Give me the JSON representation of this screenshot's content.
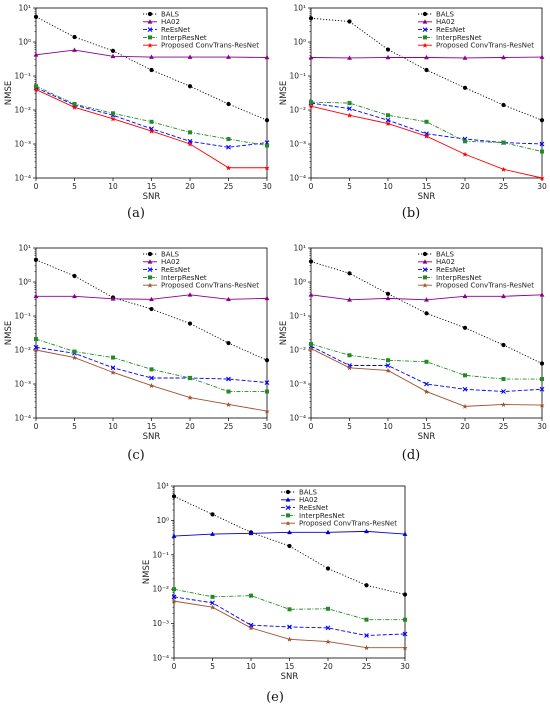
{
  "figure": {
    "legend_labels": [
      "BALS",
      "HA02",
      "ReEsNet",
      "InterpResNet",
      "Proposed ConvTrans-ResNet"
    ]
  },
  "chart_data": [
    {
      "caption": "(a)",
      "type": "line",
      "xlabel": "SNR",
      "ylabel": "NMSE",
      "x": [
        0,
        5,
        10,
        15,
        20,
        25,
        30
      ],
      "xlim": [
        0,
        30
      ],
      "ylim": [
        0.0001,
        10
      ],
      "yscale": "log",
      "xticks": [
        "0",
        "5",
        "10",
        "15",
        "20",
        "25",
        "30"
      ],
      "yticks": [
        "10⁻⁴",
        "10⁻³",
        "10⁻²",
        "10⁻¹",
        "10⁰",
        "10¹"
      ],
      "grid": false,
      "legend_position": "top-right",
      "series": [
        {
          "name": "BALS",
          "color": "#000000",
          "dash": "dotted",
          "marker": "circle",
          "values": [
            5.5,
            1.4,
            0.55,
            0.15,
            0.05,
            0.015,
            0.005
          ]
        },
        {
          "name": "HA02",
          "color": "#8b008b",
          "dash": "solid",
          "marker": "triangle",
          "values": [
            0.42,
            0.58,
            0.38,
            0.36,
            0.36,
            0.36,
            0.35
          ]
        },
        {
          "name": "ReEsNet",
          "color": "#0000ff",
          "dash": "dashed",
          "marker": "x",
          "values": [
            0.045,
            0.014,
            0.007,
            0.0028,
            0.0012,
            0.0008,
            0.0011
          ]
        },
        {
          "name": "InterpResNet",
          "color": "#228b22",
          "dash": "dashdot",
          "marker": "square",
          "values": [
            0.05,
            0.015,
            0.008,
            0.0045,
            0.0022,
            0.0014,
            0.0009
          ]
        },
        {
          "name": "Proposed ConvTrans-ResNet",
          "color": "#ff0000",
          "dash": "solid",
          "marker": "star",
          "values": [
            0.04,
            0.012,
            0.0055,
            0.0024,
            0.001,
            0.0002,
            0.0002
          ]
        }
      ]
    },
    {
      "caption": "(b)",
      "type": "line",
      "xlabel": "SNR",
      "ylabel": "NMSE",
      "x": [
        0,
        5,
        10,
        15,
        20,
        25,
        30
      ],
      "xlim": [
        0,
        30
      ],
      "ylim": [
        0.0001,
        10
      ],
      "yscale": "log",
      "xticks": [
        "0",
        "5",
        "10",
        "15",
        "20",
        "25",
        "30"
      ],
      "yticks": [
        "10⁻⁴",
        "10⁻³",
        "10⁻²",
        "10⁻¹",
        "10⁰",
        "10¹"
      ],
      "grid": false,
      "legend_position": "top-right",
      "series": [
        {
          "name": "BALS",
          "color": "#000000",
          "dash": "dotted",
          "marker": "circle",
          "values": [
            5.0,
            4.0,
            0.6,
            0.15,
            0.045,
            0.014,
            0.005
          ]
        },
        {
          "name": "HA02",
          "color": "#8b008b",
          "dash": "solid",
          "marker": "triangle",
          "values": [
            0.35,
            0.34,
            0.35,
            0.35,
            0.34,
            0.35,
            0.36
          ]
        },
        {
          "name": "ReEsNet",
          "color": "#0000ff",
          "dash": "dashed",
          "marker": "x",
          "values": [
            0.016,
            0.011,
            0.005,
            0.002,
            0.0014,
            0.0011,
            0.001
          ]
        },
        {
          "name": "InterpResNet",
          "color": "#228b22",
          "dash": "dashdot",
          "marker": "square",
          "values": [
            0.017,
            0.016,
            0.007,
            0.0045,
            0.0012,
            0.0011,
            0.0006
          ]
        },
        {
          "name": "Proposed ConvTrans-ResNet",
          "color": "#ff0000",
          "dash": "solid",
          "marker": "star",
          "values": [
            0.013,
            0.007,
            0.004,
            0.0017,
            0.0005,
            0.00018,
            0.0001
          ]
        }
      ]
    },
    {
      "caption": "(c)",
      "type": "line",
      "xlabel": "SNR",
      "ylabel": "NMSE",
      "x": [
        0,
        5,
        10,
        15,
        20,
        25,
        30
      ],
      "xlim": [
        0,
        30
      ],
      "ylim": [
        0.0001,
        10
      ],
      "yscale": "log",
      "xticks": [
        "0",
        "5",
        "10",
        "15",
        "20",
        "25",
        "30"
      ],
      "yticks": [
        "10⁻⁴",
        "10⁻³",
        "10⁻²",
        "10⁻¹",
        "10⁰",
        "10¹"
      ],
      "grid": false,
      "legend_position": "top-right",
      "series": [
        {
          "name": "BALS",
          "color": "#000000",
          "dash": "dotted",
          "marker": "circle",
          "values": [
            4.5,
            1.5,
            0.35,
            0.16,
            0.06,
            0.016,
            0.005
          ]
        },
        {
          "name": "HA02",
          "color": "#8b008b",
          "dash": "solid",
          "marker": "triangle",
          "values": [
            0.38,
            0.38,
            0.32,
            0.31,
            0.42,
            0.31,
            0.33
          ]
        },
        {
          "name": "ReEsNet",
          "color": "#0000ff",
          "dash": "dashed",
          "marker": "x",
          "values": [
            0.012,
            0.008,
            0.003,
            0.0015,
            0.0015,
            0.0014,
            0.0011
          ]
        },
        {
          "name": "InterpResNet",
          "color": "#228b22",
          "dash": "dashdot",
          "marker": "square",
          "values": [
            0.021,
            0.009,
            0.006,
            0.0027,
            0.0015,
            0.0006,
            0.0006
          ]
        },
        {
          "name": "Proposed ConvTrans-ResNet",
          "color": "#a0522d",
          "dash": "solid",
          "marker": "star",
          "values": [
            0.01,
            0.006,
            0.0022,
            0.0009,
            0.0004,
            0.00025,
            0.00016
          ]
        }
      ]
    },
    {
      "caption": "(d)",
      "type": "line",
      "xlabel": "SNR",
      "ylabel": "NMSE",
      "x": [
        0,
        5,
        10,
        15,
        20,
        25,
        30
      ],
      "xlim": [
        0,
        30
      ],
      "ylim": [
        0.0001,
        10
      ],
      "yscale": "log",
      "xticks": [
        "0",
        "5",
        "10",
        "15",
        "20",
        "25",
        "30"
      ],
      "yticks": [
        "10⁻⁴",
        "10⁻³",
        "10⁻²",
        "10⁻¹",
        "10⁰",
        "10¹"
      ],
      "grid": false,
      "legend_position": "top-right",
      "series": [
        {
          "name": "BALS",
          "color": "#000000",
          "dash": "dotted",
          "marker": "circle",
          "values": [
            4.0,
            1.8,
            0.45,
            0.12,
            0.045,
            0.014,
            0.004
          ]
        },
        {
          "name": "HA02",
          "color": "#8b008b",
          "dash": "solid",
          "marker": "triangle",
          "values": [
            0.42,
            0.3,
            0.33,
            0.3,
            0.38,
            0.38,
            0.42
          ]
        },
        {
          "name": "ReEsNet",
          "color": "#0000ff",
          "dash": "dashed",
          "marker": "x",
          "values": [
            0.013,
            0.0035,
            0.0035,
            0.001,
            0.0007,
            0.0006,
            0.0007
          ]
        },
        {
          "name": "InterpResNet",
          "color": "#228b22",
          "dash": "dashdot",
          "marker": "square",
          "values": [
            0.015,
            0.007,
            0.005,
            0.0045,
            0.0018,
            0.0014,
            0.0014
          ]
        },
        {
          "name": "Proposed ConvTrans-ResNet",
          "color": "#a0522d",
          "dash": "solid",
          "marker": "star",
          "values": [
            0.011,
            0.003,
            0.0025,
            0.0006,
            0.00022,
            0.00025,
            0.00024
          ]
        }
      ]
    },
    {
      "caption": "(e)",
      "type": "line",
      "xlabel": "SNR",
      "ylabel": "NMSE",
      "x": [
        0,
        5,
        10,
        15,
        20,
        25,
        30
      ],
      "xlim": [
        0,
        30
      ],
      "ylim": [
        0.0001,
        10
      ],
      "yscale": "log",
      "xticks": [
        "0",
        "5",
        "10",
        "15",
        "20",
        "25",
        "30"
      ],
      "yticks": [
        "10⁻⁴",
        "10⁻³",
        "10⁻²",
        "10⁻¹",
        "10⁰",
        "10¹"
      ],
      "grid": false,
      "legend_position": "top-right",
      "series": [
        {
          "name": "BALS",
          "color": "#000000",
          "dash": "dotted",
          "marker": "circle",
          "values": [
            5.0,
            1.5,
            0.45,
            0.18,
            0.04,
            0.013,
            0.007
          ]
        },
        {
          "name": "HA02",
          "color": "#0000cd",
          "dash": "solid",
          "marker": "triangle",
          "values": [
            0.35,
            0.4,
            0.42,
            0.45,
            0.45,
            0.48,
            0.4
          ]
        },
        {
          "name": "ReEsNet",
          "color": "#0000ff",
          "dash": "dashed",
          "marker": "x",
          "values": [
            0.006,
            0.004,
            0.0009,
            0.0008,
            0.00075,
            0.00045,
            0.0005
          ]
        },
        {
          "name": "InterpResNet",
          "color": "#228b22",
          "dash": "dashdot",
          "marker": "square",
          "values": [
            0.01,
            0.006,
            0.0065,
            0.0026,
            0.0027,
            0.0013,
            0.0013
          ]
        },
        {
          "name": "Proposed ConvTrans-ResNet",
          "color": "#a0522d",
          "dash": "solid",
          "marker": "star",
          "values": [
            0.0045,
            0.003,
            0.00075,
            0.00035,
            0.0003,
            0.0002,
            0.0002
          ]
        }
      ]
    }
  ]
}
